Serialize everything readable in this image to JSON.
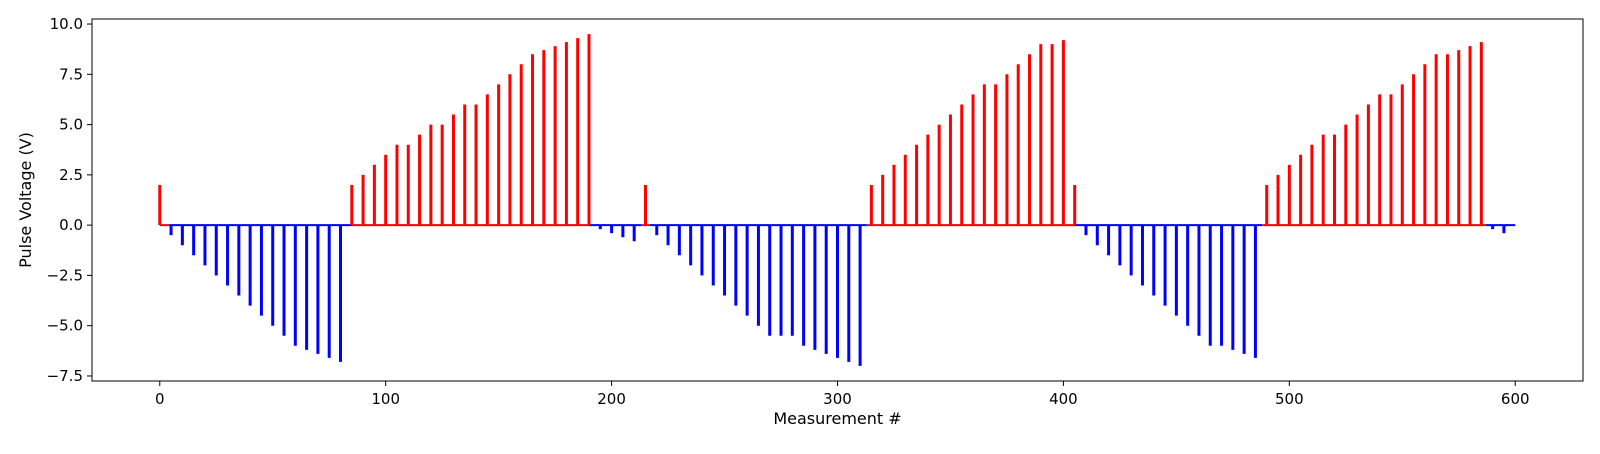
{
  "chart_data": {
    "type": "bar",
    "xlabel": "Measurement #",
    "ylabel": "Pulse Voltage (V)",
    "xlim": [
      -30,
      630
    ],
    "ylim": [
      -7.75,
      10.25
    ],
    "xticks": [
      0,
      100,
      200,
      300,
      400,
      500,
      600
    ],
    "yticks": [
      -7.5,
      -5.0,
      -2.5,
      0.0,
      2.5,
      5.0,
      7.5,
      10.0
    ],
    "x_tick_labels": [
      "0",
      "100",
      "200",
      "300",
      "400",
      "500",
      "600"
    ],
    "y_tick_labels": [
      "−7.5",
      "−5.0",
      "−2.5",
      "0.0",
      "2.5",
      "5.0",
      "7.5",
      "10.0"
    ],
    "grid": false,
    "colors": {
      "positive": "#ff0000",
      "negative": "#0000ff",
      "axes": "#000000"
    },
    "series": [
      {
        "color": "#ff0000",
        "x": [
          0,
          85,
          90,
          95,
          100,
          105,
          110,
          115,
          120,
          125,
          130,
          135,
          140,
          145,
          150,
          155,
          160,
          165,
          170,
          175,
          180,
          185,
          190,
          215,
          315,
          320,
          325,
          330,
          335,
          340,
          345,
          350,
          355,
          360,
          365,
          370,
          375,
          380,
          385,
          390,
          395,
          400,
          405,
          490,
          495,
          500,
          505,
          510,
          515,
          520,
          525,
          530,
          535,
          540,
          545,
          550,
          555,
          560,
          565,
          570,
          575,
          580,
          585
        ],
        "values": [
          2.0,
          2.0,
          2.5,
          3.0,
          3.5,
          4.0,
          4.0,
          4.5,
          5.0,
          5.0,
          5.5,
          6.0,
          6.0,
          6.5,
          7.0,
          7.5,
          8.0,
          8.5,
          8.7,
          8.9,
          9.1,
          9.3,
          9.5,
          2.0,
          2.0,
          2.5,
          3.0,
          3.5,
          4.0,
          4.5,
          5.0,
          5.5,
          6.0,
          6.5,
          7.0,
          7.0,
          7.5,
          8.0,
          8.5,
          9.0,
          9.0,
          9.2,
          2.0,
          2.0,
          2.5,
          3.0,
          3.5,
          4.0,
          4.5,
          4.5,
          5.0,
          5.5,
          6.0,
          6.5,
          6.5,
          7.0,
          7.5,
          8.0,
          8.5,
          8.5,
          8.7,
          8.9,
          9.1
        ]
      },
      {
        "color": "#0000ff",
        "x": [
          5,
          10,
          15,
          20,
          25,
          30,
          35,
          40,
          45,
          50,
          55,
          60,
          65,
          70,
          75,
          80,
          195,
          200,
          205,
          210,
          220,
          225,
          230,
          235,
          240,
          245,
          250,
          255,
          260,
          265,
          270,
          275,
          280,
          285,
          290,
          295,
          300,
          305,
          310,
          410,
          415,
          420,
          425,
          430,
          435,
          440,
          445,
          450,
          455,
          460,
          465,
          470,
          475,
          480,
          485,
          590,
          595
        ],
        "values": [
          -0.5,
          -1.0,
          -1.5,
          -2.0,
          -2.5,
          -3.0,
          -3.5,
          -4.0,
          -4.5,
          -5.0,
          -5.5,
          -6.0,
          -6.2,
          -6.4,
          -6.6,
          -6.8,
          -0.2,
          -0.4,
          -0.6,
          -0.8,
          -0.5,
          -1.0,
          -1.5,
          -2.0,
          -2.5,
          -3.0,
          -3.5,
          -4.0,
          -4.5,
          -5.0,
          -5.5,
          -5.5,
          -5.5,
          -6.0,
          -6.2,
          -6.4,
          -6.6,
          -6.8,
          -7.0,
          -0.5,
          -1.0,
          -1.5,
          -2.0,
          -2.5,
          -3.0,
          -3.5,
          -4.0,
          -4.5,
          -5.0,
          -5.5,
          -6.0,
          -6.0,
          -6.2,
          -6.4,
          -6.6,
          -0.2,
          -0.4
        ]
      }
    ],
    "baselines": [
      {
        "color": "#ff0000",
        "x_range": [
          0,
          4
        ]
      },
      {
        "color": "#ff0000",
        "x_range": [
          85,
          190
        ]
      },
      {
        "color": "#ff0000",
        "x_range": [
          213,
          217
        ]
      },
      {
        "color": "#ff0000",
        "x_range": [
          313,
          405
        ]
      },
      {
        "color": "#ff0000",
        "x_range": [
          488,
          587
        ]
      },
      {
        "color": "#0000ff",
        "x_range": [
          4,
          85
        ]
      },
      {
        "color": "#0000ff",
        "x_range": [
          190,
          213
        ]
      },
      {
        "color": "#0000ff",
        "x_range": [
          217,
          313
        ]
      },
      {
        "color": "#0000ff",
        "x_range": [
          405,
          488
        ]
      },
      {
        "color": "#0000ff",
        "x_range": [
          587,
          600
        ]
      }
    ]
  }
}
